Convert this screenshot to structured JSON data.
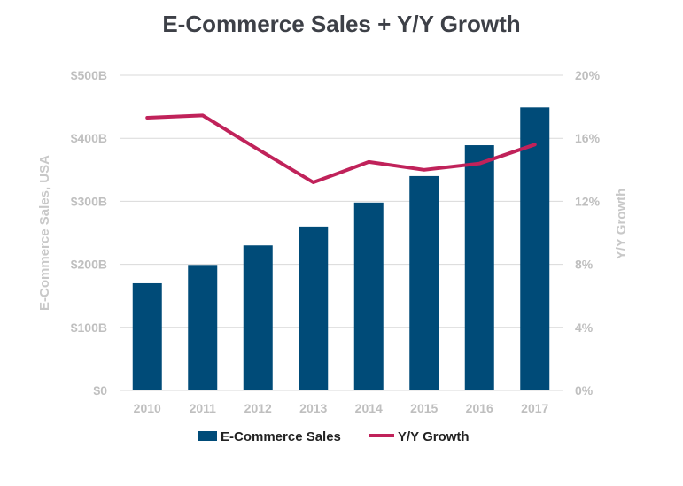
{
  "chart_data": {
    "type": "bar",
    "title": "E-Commerce Sales + Y/Y Growth",
    "categories": [
      "2010",
      "2011",
      "2012",
      "2013",
      "2014",
      "2015",
      "2016",
      "2017"
    ],
    "series": [
      {
        "name": "E-Commerce Sales",
        "type": "bar",
        "axis": "left",
        "unit": "$B",
        "color": "#004b78",
        "values": [
          170,
          199,
          230,
          260,
          298,
          340,
          389,
          449
        ]
      },
      {
        "name": "Y/Y Growth",
        "type": "line",
        "axis": "right",
        "unit": "%",
        "color": "#c0225a",
        "values": [
          17.3,
          17.45,
          15.3,
          13.2,
          14.5,
          14.0,
          14.4,
          15.6
        ]
      }
    ],
    "ylabel": "E-Commerce Sales, USA",
    "y2label": "Y/Y Growth",
    "ylim": [
      0,
      500
    ],
    "y2lim": [
      0,
      20
    ],
    "yticks": [
      "$0",
      "$100B",
      "$200B",
      "$300B",
      "$400B",
      "$500B"
    ],
    "y2ticks": [
      "0%",
      "4%",
      "8%",
      "12%",
      "16%",
      "20%"
    ],
    "grid": true,
    "legend": "bottom"
  }
}
